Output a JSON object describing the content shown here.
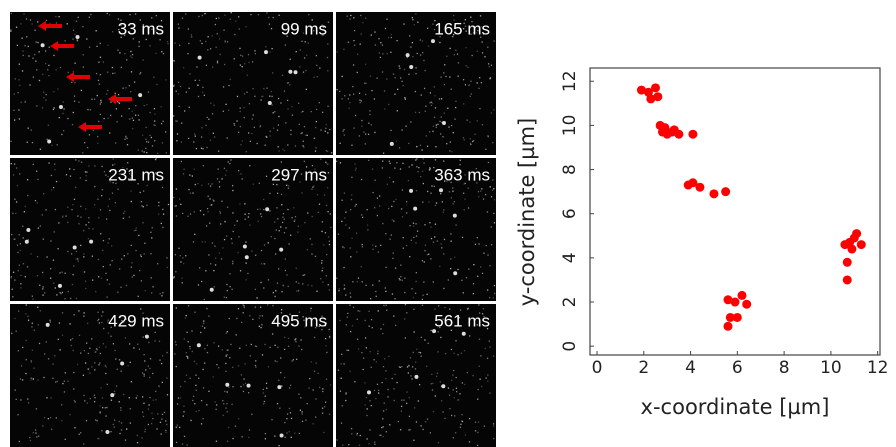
{
  "frames": {
    "labels": [
      "33 ms",
      "99 ms",
      "165 ms",
      "231 ms",
      "297 ms",
      "363 ms",
      "429 ms",
      "495 ms",
      "561 ms"
    ]
  },
  "chart_data": {
    "type": "scatter",
    "x_label": "x-coordinate [µm]",
    "y_label": "y-coordinate [µm]",
    "color": "#ff0000",
    "x": [
      1.9,
      2.2,
      2.5,
      2.6,
      2.3,
      2.7,
      2.8,
      3.0,
      3.2,
      3.5,
      2.9,
      3.3,
      4.1,
      3.9,
      4.1,
      4.4,
      5.0,
      5.5,
      5.6,
      5.9,
      5.7,
      5.6,
      6.0,
      6.2,
      6.4,
      10.6,
      10.7,
      10.7,
      10.9,
      11.0,
      11.1,
      11.3,
      10.8
    ],
    "y": [
      11.6,
      11.5,
      11.7,
      11.3,
      11.2,
      10.0,
      9.7,
      9.6,
      9.7,
      9.6,
      9.9,
      9.8,
      9.6,
      7.3,
      7.4,
      7.2,
      6.9,
      7.0,
      2.1,
      2.0,
      1.3,
      0.9,
      1.3,
      2.3,
      1.9,
      4.6,
      3.8,
      3.0,
      4.4,
      4.9,
      5.1,
      4.6,
      4.7
    ],
    "xlim": [
      -0.3,
      12.1
    ],
    "ylim": [
      -0.4,
      12.6
    ],
    "xticks": [
      0,
      2,
      4,
      6,
      8,
      10,
      12
    ],
    "yticks": [
      0,
      2,
      4,
      6,
      8,
      10,
      12
    ]
  }
}
